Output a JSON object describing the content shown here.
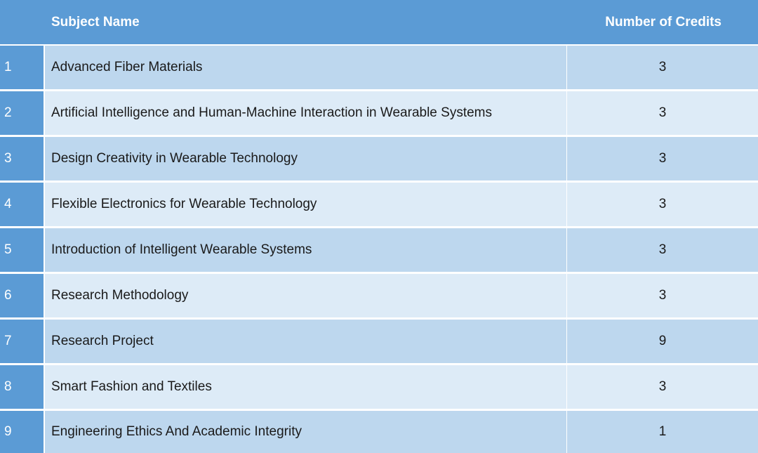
{
  "header": {
    "num": "",
    "subject": "Subject Name",
    "credits": "Number of Credits"
  },
  "rows": [
    {
      "num": "1",
      "subject": "Advanced Fiber Materials",
      "credits": "3"
    },
    {
      "num": "2",
      "subject": "Artificial Intelligence and Human-Machine Interaction in Wearable Systems",
      "credits": "3"
    },
    {
      "num": "3",
      "subject": "Design Creativity in Wearable Technology",
      "credits": "3"
    },
    {
      "num": "4",
      "subject": "Flexible Electronics for Wearable Technology",
      "credits": "3"
    },
    {
      "num": "5",
      "subject": "Introduction of Intelligent Wearable Systems",
      "credits": "3"
    },
    {
      "num": "6",
      "subject": "Research Methodology",
      "credits": "3"
    },
    {
      "num": "7",
      "subject": "Research Project",
      "credits": "9"
    },
    {
      "num": "8",
      "subject": "Smart Fashion and Textiles",
      "credits": "3"
    },
    {
      "num": "9",
      "subject": "Engineering Ethics And Academic Integrity",
      "credits": "1"
    }
  ],
  "colors": {
    "header": "#5b9bd5",
    "row_dark": "#bdd7ee",
    "row_light": "#ddebf7"
  }
}
